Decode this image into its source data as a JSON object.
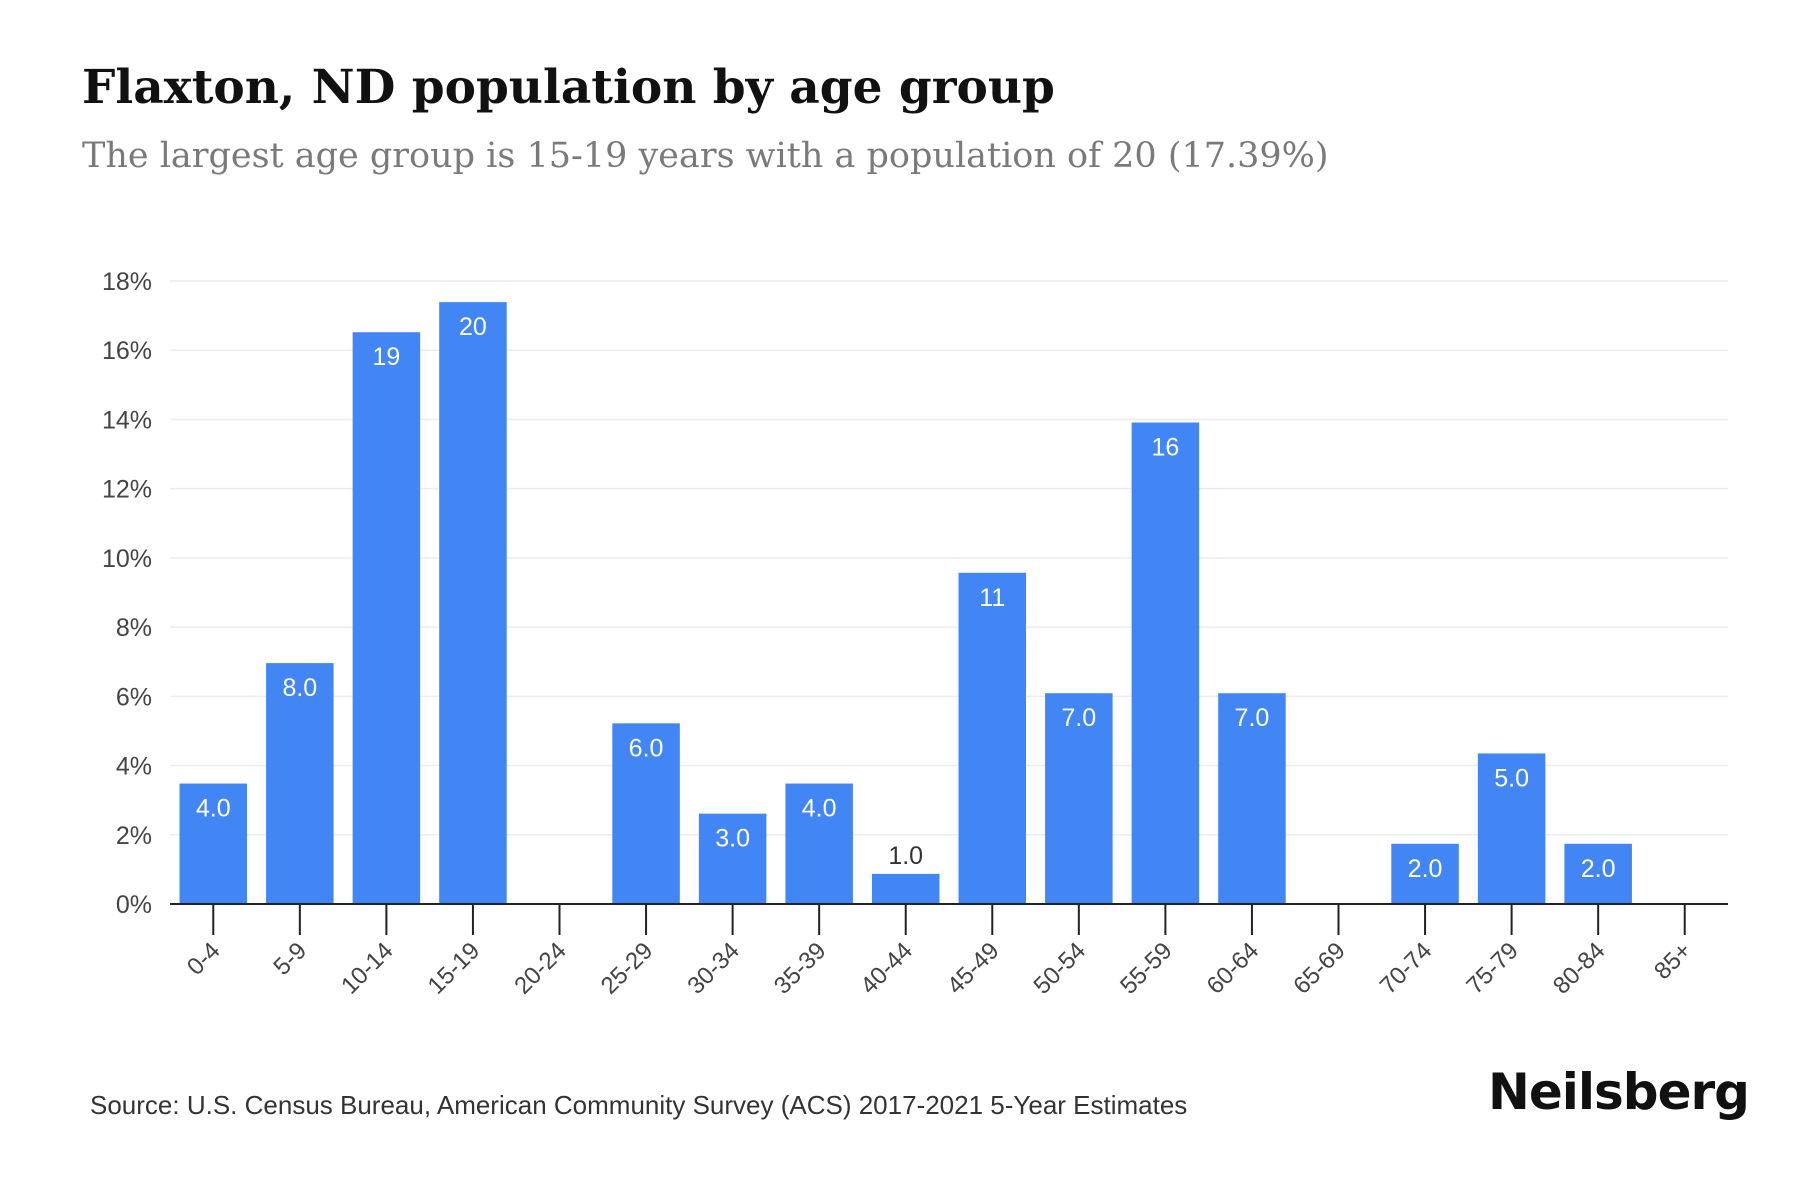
{
  "header": {
    "title": "Flaxton, ND population by age group",
    "subtitle": "The largest age group is 15-19 years with a population of 20 (17.39%)"
  },
  "footer": {
    "source": "Source: U.S. Census Bureau, American Community Survey (ACS) 2017-2021 5-Year Estimates",
    "brand": "Neilsberg"
  },
  "colors": {
    "bar": "#4285f4",
    "bar_label": "#ffffff",
    "outside_label": "#333333",
    "grid": "#ececec",
    "axis": "#222222",
    "tick_text": "#444444"
  },
  "chart_data": {
    "type": "bar",
    "title": "Flaxton, ND population by age group",
    "subtitle": "The largest age group is 15-19 years with a population of 20 (17.39%)",
    "xlabel": "",
    "ylabel": "",
    "ylim": [
      0,
      18
    ],
    "y_unit": "%",
    "yticks": [
      0,
      2,
      4,
      6,
      8,
      10,
      12,
      14,
      16,
      18
    ],
    "ytick_labels": [
      "0%",
      "2%",
      "4%",
      "6%",
      "8%",
      "10%",
      "12%",
      "14%",
      "16%",
      "18%"
    ],
    "grid": true,
    "categories": [
      "0-4",
      "5-9",
      "10-14",
      "15-19",
      "20-24",
      "25-29",
      "30-34",
      "35-39",
      "40-44",
      "45-49",
      "50-54",
      "55-59",
      "60-64",
      "65-69",
      "70-74",
      "75-79",
      "80-84",
      "85+"
    ],
    "values": [
      3.48,
      6.96,
      16.52,
      17.39,
      0,
      5.22,
      2.61,
      3.48,
      0.87,
      9.57,
      6.09,
      13.91,
      6.09,
      0,
      1.74,
      4.35,
      1.74,
      0
    ],
    "data_labels": [
      "4.0",
      "8.0",
      "19",
      "20",
      "",
      "6.0",
      "3.0",
      "4.0",
      "1.0",
      "11",
      "7.0",
      "16",
      "7.0",
      "",
      "2.0",
      "5.0",
      "2.0",
      ""
    ]
  }
}
